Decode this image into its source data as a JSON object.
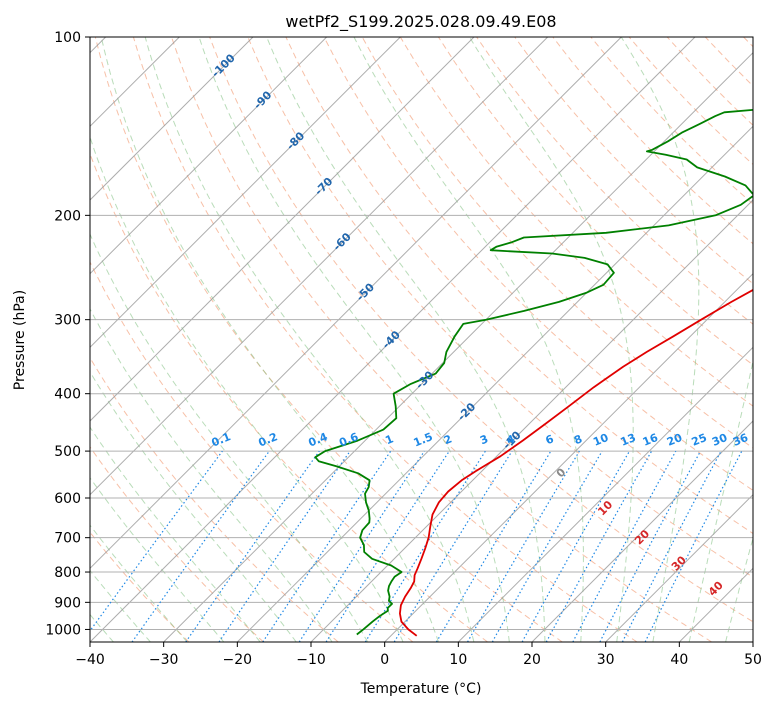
{
  "chart_data": {
    "type": "line",
    "title": "wetPf2_S199.2025.028.09.49.E08",
    "xlabel": "Temperature (°C)",
    "ylabel": "Pressure (hPa)",
    "xlim": [
      -40,
      50
    ],
    "ylim": [
      1050,
      100
    ],
    "y_scale": "log",
    "grid": true,
    "x_ticks": [
      -40,
      -30,
      -20,
      -10,
      0,
      10,
      20,
      30,
      40,
      50
    ],
    "x_tick_labels": [
      "−40",
      "−30",
      "−20",
      "−10",
      "0",
      "10",
      "20",
      "30",
      "40",
      "50"
    ],
    "y_ticks": [
      1000,
      900,
      800,
      700,
      600,
      500,
      400,
      300,
      200,
      100
    ],
    "y_tick_labels": [
      "1000",
      "900",
      "800",
      "700",
      "600",
      "500",
      "400",
      "300",
      "200",
      "100"
    ],
    "isotherm_labels": [
      {
        "text": "-100",
        "value": -100
      },
      {
        "text": "-90",
        "value": -90
      },
      {
        "text": "-80",
        "value": -80
      },
      {
        "text": "-70",
        "value": -70
      },
      {
        "text": "-60",
        "value": -60
      },
      {
        "text": "-50",
        "value": -50
      },
      {
        "text": "-40",
        "value": -40
      },
      {
        "text": "-30",
        "value": -30
      },
      {
        "text": "-20",
        "value": -20
      },
      {
        "text": "-10",
        "value": -10
      }
    ],
    "mixing_ratio_labels": [
      "0.1",
      "0.2",
      "0.4",
      "0.6",
      "1",
      "1.5",
      "2",
      "3",
      "4",
      "6",
      "8",
      "10",
      "13",
      "16",
      "20",
      "25",
      "30",
      "36"
    ],
    "moist_adiabat_labels": [
      {
        "text": "0",
        "value": 0
      },
      {
        "text": "10",
        "value": 10
      },
      {
        "text": "20",
        "value": 20
      },
      {
        "text": "30",
        "value": 30
      },
      {
        "text": "40",
        "value": 40
      }
    ],
    "series": [
      {
        "color": "#e00000",
        "points": [
          [
            1025,
            3.5
          ],
          [
            1000,
            1.5
          ],
          [
            970,
            -0.5
          ],
          [
            940,
            -1.8
          ],
          [
            910,
            -2.8
          ],
          [
            880,
            -3.4
          ],
          [
            850,
            -3.8
          ],
          [
            830,
            -4.2
          ],
          [
            810,
            -5.0
          ],
          [
            790,
            -5.5
          ],
          [
            760,
            -6.3
          ],
          [
            730,
            -7.2
          ],
          [
            700,
            -8.2
          ],
          [
            670,
            -9.5
          ],
          [
            640,
            -10.8
          ],
          [
            610,
            -11.6
          ],
          [
            585,
            -11.8
          ],
          [
            560,
            -11.5
          ],
          [
            540,
            -10.8
          ],
          [
            510,
            -9.5
          ],
          [
            480,
            -8.6
          ],
          [
            450,
            -7.8
          ],
          [
            420,
            -7.0
          ],
          [
            390,
            -6.2
          ],
          [
            360,
            -5.0
          ],
          [
            340,
            -3.8
          ],
          [
            320,
            -2.3
          ],
          [
            300,
            -0.8
          ],
          [
            280,
            0.9
          ],
          [
            260,
            3.0
          ],
          [
            240,
            5.8
          ],
          [
            225,
            8.7
          ],
          [
            210,
            10.4
          ],
          [
            195,
            12.3
          ],
          [
            180,
            15.0
          ],
          [
            165,
            17.4
          ],
          [
            150,
            19.3
          ],
          [
            135,
            20.8
          ],
          [
            125,
            21.3
          ],
          [
            115,
            21.9
          ],
          [
            105,
            22.9
          ],
          [
            100,
            23.7
          ]
        ]
      },
      {
        "color": "#008000",
        "points": [
          [
            1020,
            -4.8
          ],
          [
            1000,
            -4.6
          ],
          [
            970,
            -4.4
          ],
          [
            950,
            -4.2
          ],
          [
            930,
            -3.8
          ],
          [
            920,
            -4.2
          ],
          [
            905,
            -4.2
          ],
          [
            895,
            -5.0
          ],
          [
            880,
            -5.5
          ],
          [
            860,
            -6.5
          ],
          [
            845,
            -7.0
          ],
          [
            830,
            -7.3
          ],
          [
            815,
            -7.5
          ],
          [
            800,
            -7.2
          ],
          [
            780,
            -9.5
          ],
          [
            760,
            -13.0
          ],
          [
            740,
            -15.0
          ],
          [
            720,
            -16.0
          ],
          [
            700,
            -17.5
          ],
          [
            680,
            -18.2
          ],
          [
            660,
            -18.3
          ],
          [
            650,
            -18.8
          ],
          [
            630,
            -20.0
          ],
          [
            610,
            -21.5
          ],
          [
            590,
            -22.8
          ],
          [
            575,
            -23.2
          ],
          [
            560,
            -24.0
          ],
          [
            545,
            -26.5
          ],
          [
            530,
            -30.5
          ],
          [
            520,
            -33.5
          ],
          [
            512,
            -34.5
          ],
          [
            500,
            -34.0
          ],
          [
            480,
            -31.0
          ],
          [
            460,
            -29.0
          ],
          [
            440,
            -28.8
          ],
          [
            420,
            -30.5
          ],
          [
            400,
            -32.5
          ],
          [
            385,
            -31.5
          ],
          [
            370,
            -29.5
          ],
          [
            355,
            -29.8
          ],
          [
            340,
            -31.0
          ],
          [
            320,
            -32.0
          ],
          [
            305,
            -32.5
          ],
          [
            300,
            -30.0
          ],
          [
            290,
            -26.0
          ],
          [
            280,
            -22.5
          ],
          [
            270,
            -20.0
          ],
          [
            262,
            -18.8
          ],
          [
            250,
            -19.0
          ],
          [
            242,
            -21.0
          ],
          [
            236,
            -25.0
          ],
          [
            232,
            -30.0
          ],
          [
            230,
            -36.0
          ],
          [
            229,
            -38.8
          ],
          [
            226,
            -38.5
          ],
          [
            222,
            -37.0
          ],
          [
            218,
            -36.0
          ],
          [
            214,
            -25.5
          ],
          [
            208,
            -18.0
          ],
          [
            200,
            -13.0
          ],
          [
            192,
            -11.0
          ],
          [
            185,
            -10.5
          ],
          [
            178,
            -13.0
          ],
          [
            172,
            -17.0
          ],
          [
            166,
            -22.0
          ],
          [
            161,
            -24.5
          ],
          [
            158,
            -28.0
          ],
          [
            156,
            -31.0
          ],
          [
            155,
            -30.5
          ],
          [
            150,
            -29.5
          ],
          [
            145,
            -28.8
          ],
          [
            140,
            -27.5
          ],
          [
            136,
            -26.5
          ],
          [
            134,
            -25.8
          ],
          [
            132,
            -20.0
          ],
          [
            130,
            -13.0
          ],
          [
            126,
            -11.5
          ],
          [
            122,
            -10.2
          ],
          [
            116,
            -9.0
          ],
          [
            110,
            -7.5
          ],
          [
            104,
            -6.5
          ],
          [
            100,
            -5.5
          ]
        ]
      }
    ]
  }
}
